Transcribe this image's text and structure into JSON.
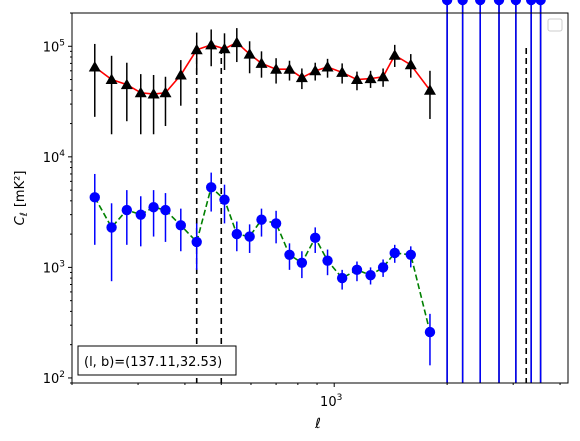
{
  "chart_data": {
    "type": "line",
    "xlabel": "ℓ",
    "ylabel_main": "C",
    "ylabel_sub": "ℓ",
    "ylabel_unit": "[mK²]",
    "xscale": "log",
    "yscale": "log",
    "xlim": [
      200,
      4200
    ],
    "ylim": [
      90,
      200000
    ],
    "x_tick_labels": [
      {
        "value": 1000,
        "base": "10",
        "exp": "3"
      }
    ],
    "y_tick_labels": [
      {
        "value": 100,
        "base": "10",
        "exp": "2"
      },
      {
        "value": 1000,
        "base": "10",
        "exp": "3"
      },
      {
        "value": 10000,
        "base": "10",
        "exp": "4"
      },
      {
        "value": 100000,
        "base": "10",
        "exp": "5"
      }
    ],
    "legend": {
      "placement": "top-right",
      "entries": []
    },
    "annotation": "(l, b)=(137.11,32.53)",
    "vlines": [
      430,
      500,
      3250
    ],
    "series": [
      {
        "color": "#ff0000",
        "marker": "triangle",
        "marker_color": "#000000",
        "errorbar_color": "#000000",
        "linestyle": "solid",
        "x": [
          230,
          255,
          280,
          305,
          330,
          355,
          390,
          430,
          470,
          510,
          550,
          595,
          640,
          700,
          760,
          820,
          890,
          960,
          1050,
          1150,
          1250,
          1350,
          1450,
          1600,
          1800,
          2000,
          2200,
          2450,
          2750,
          3050,
          3350,
          3550
        ],
        "y": [
          65000,
          50000,
          45000,
          38000,
          37000,
          38000,
          55000,
          93000,
          103000,
          95000,
          108000,
          85000,
          70000,
          62000,
          62000,
          52000,
          60000,
          65000,
          58000,
          50000,
          51000,
          53000,
          83000,
          68000,
          40000,
          0,
          0,
          0,
          0,
          0,
          0,
          0
        ],
        "y_err_low": [
          42000,
          34000,
          24000,
          22000,
          21000,
          19000,
          26000,
          38000,
          37000,
          34000,
          36000,
          28000,
          18000,
          16000,
          13000,
          11000,
          11000,
          13000,
          12000,
          10000,
          9000,
          10000,
          18000,
          16000,
          18000,
          0,
          0,
          0,
          0,
          0,
          0,
          0
        ],
        "y_err_high": [
          40000,
          32000,
          26000,
          18000,
          18000,
          15000,
          20000,
          40000,
          39000,
          36000,
          38000,
          26000,
          20000,
          16000,
          12000,
          11000,
          11000,
          12000,
          12000,
          9000,
          9000,
          10000,
          20000,
          17000,
          20000,
          0,
          0,
          0,
          0,
          0,
          0,
          0
        ]
      },
      {
        "color": "#008000",
        "marker": "circle",
        "marker_color": "#0000ff",
        "errorbar_color": "#0000ff",
        "linestyle": "dashed",
        "x": [
          230,
          255,
          280,
          305,
          330,
          355,
          390,
          430,
          470,
          510,
          550,
          595,
          640,
          700,
          760,
          820,
          890,
          960,
          1050,
          1150,
          1250,
          1350,
          1450,
          1600,
          1800,
          2000,
          2200,
          2450,
          2750,
          3050,
          3350,
          3550
        ],
        "y": [
          4300,
          2300,
          3300,
          3000,
          3500,
          3300,
          2400,
          1700,
          5300,
          4100,
          2000,
          1900,
          2700,
          2500,
          1300,
          1100,
          1850,
          1150,
          800,
          950,
          850,
          1000,
          1350,
          1300,
          260,
          0,
          0,
          0,
          0,
          0,
          0,
          0
        ],
        "y_err_low": [
          2700,
          1550,
          1700,
          1450,
          1600,
          1600,
          1000,
          750,
          2100,
          1600,
          600,
          550,
          800,
          850,
          350,
          300,
          500,
          300,
          170,
          200,
          150,
          180,
          250,
          300,
          130,
          0,
          0,
          0,
          0,
          0,
          0,
          0
        ],
        "y_err_high": [
          2700,
          1500,
          1700,
          1400,
          1500,
          1400,
          1000,
          800,
          1900,
          1500,
          600,
          550,
          700,
          750,
          350,
          300,
          450,
          300,
          150,
          180,
          150,
          180,
          250,
          250,
          120,
          0,
          0,
          0,
          0,
          0,
          0,
          0
        ]
      }
    ]
  }
}
